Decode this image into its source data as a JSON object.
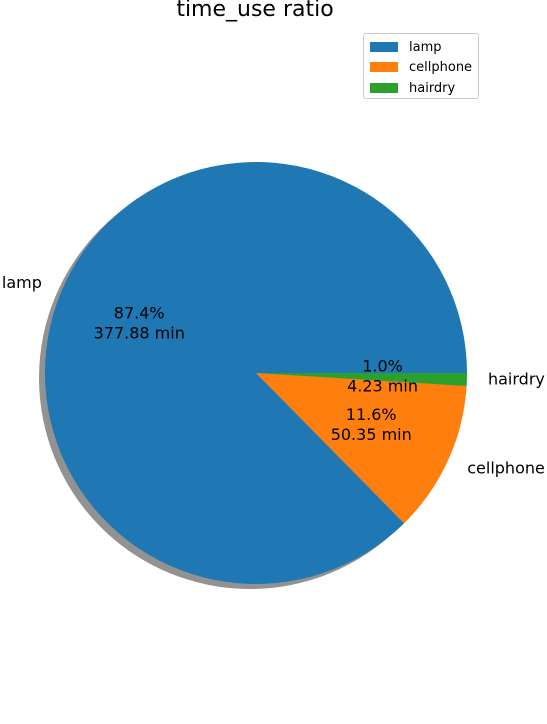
{
  "chart_data": {
    "type": "pie",
    "title": "time_use ratio",
    "slices": [
      {
        "label": "lamp",
        "value": 377.88,
        "percent_label": "87.4%",
        "value_label": "377.88 min",
        "color": "#1f77b4"
      },
      {
        "label": "cellphone",
        "value": 50.35,
        "percent_label": "11.6%",
        "value_label": "50.35 min",
        "color": "#ff7f0e"
      },
      {
        "label": "hairdry",
        "value": 4.23,
        "percent_label": "1.0%",
        "value_label": "4.23 min",
        "color": "#2ca02c"
      }
    ],
    "start_angle_deg": 0,
    "direction": "counterclockwise",
    "shadow": true,
    "legend": {
      "position": "top-right",
      "entries": [
        "lamp",
        "cellphone",
        "hairdry"
      ]
    }
  }
}
